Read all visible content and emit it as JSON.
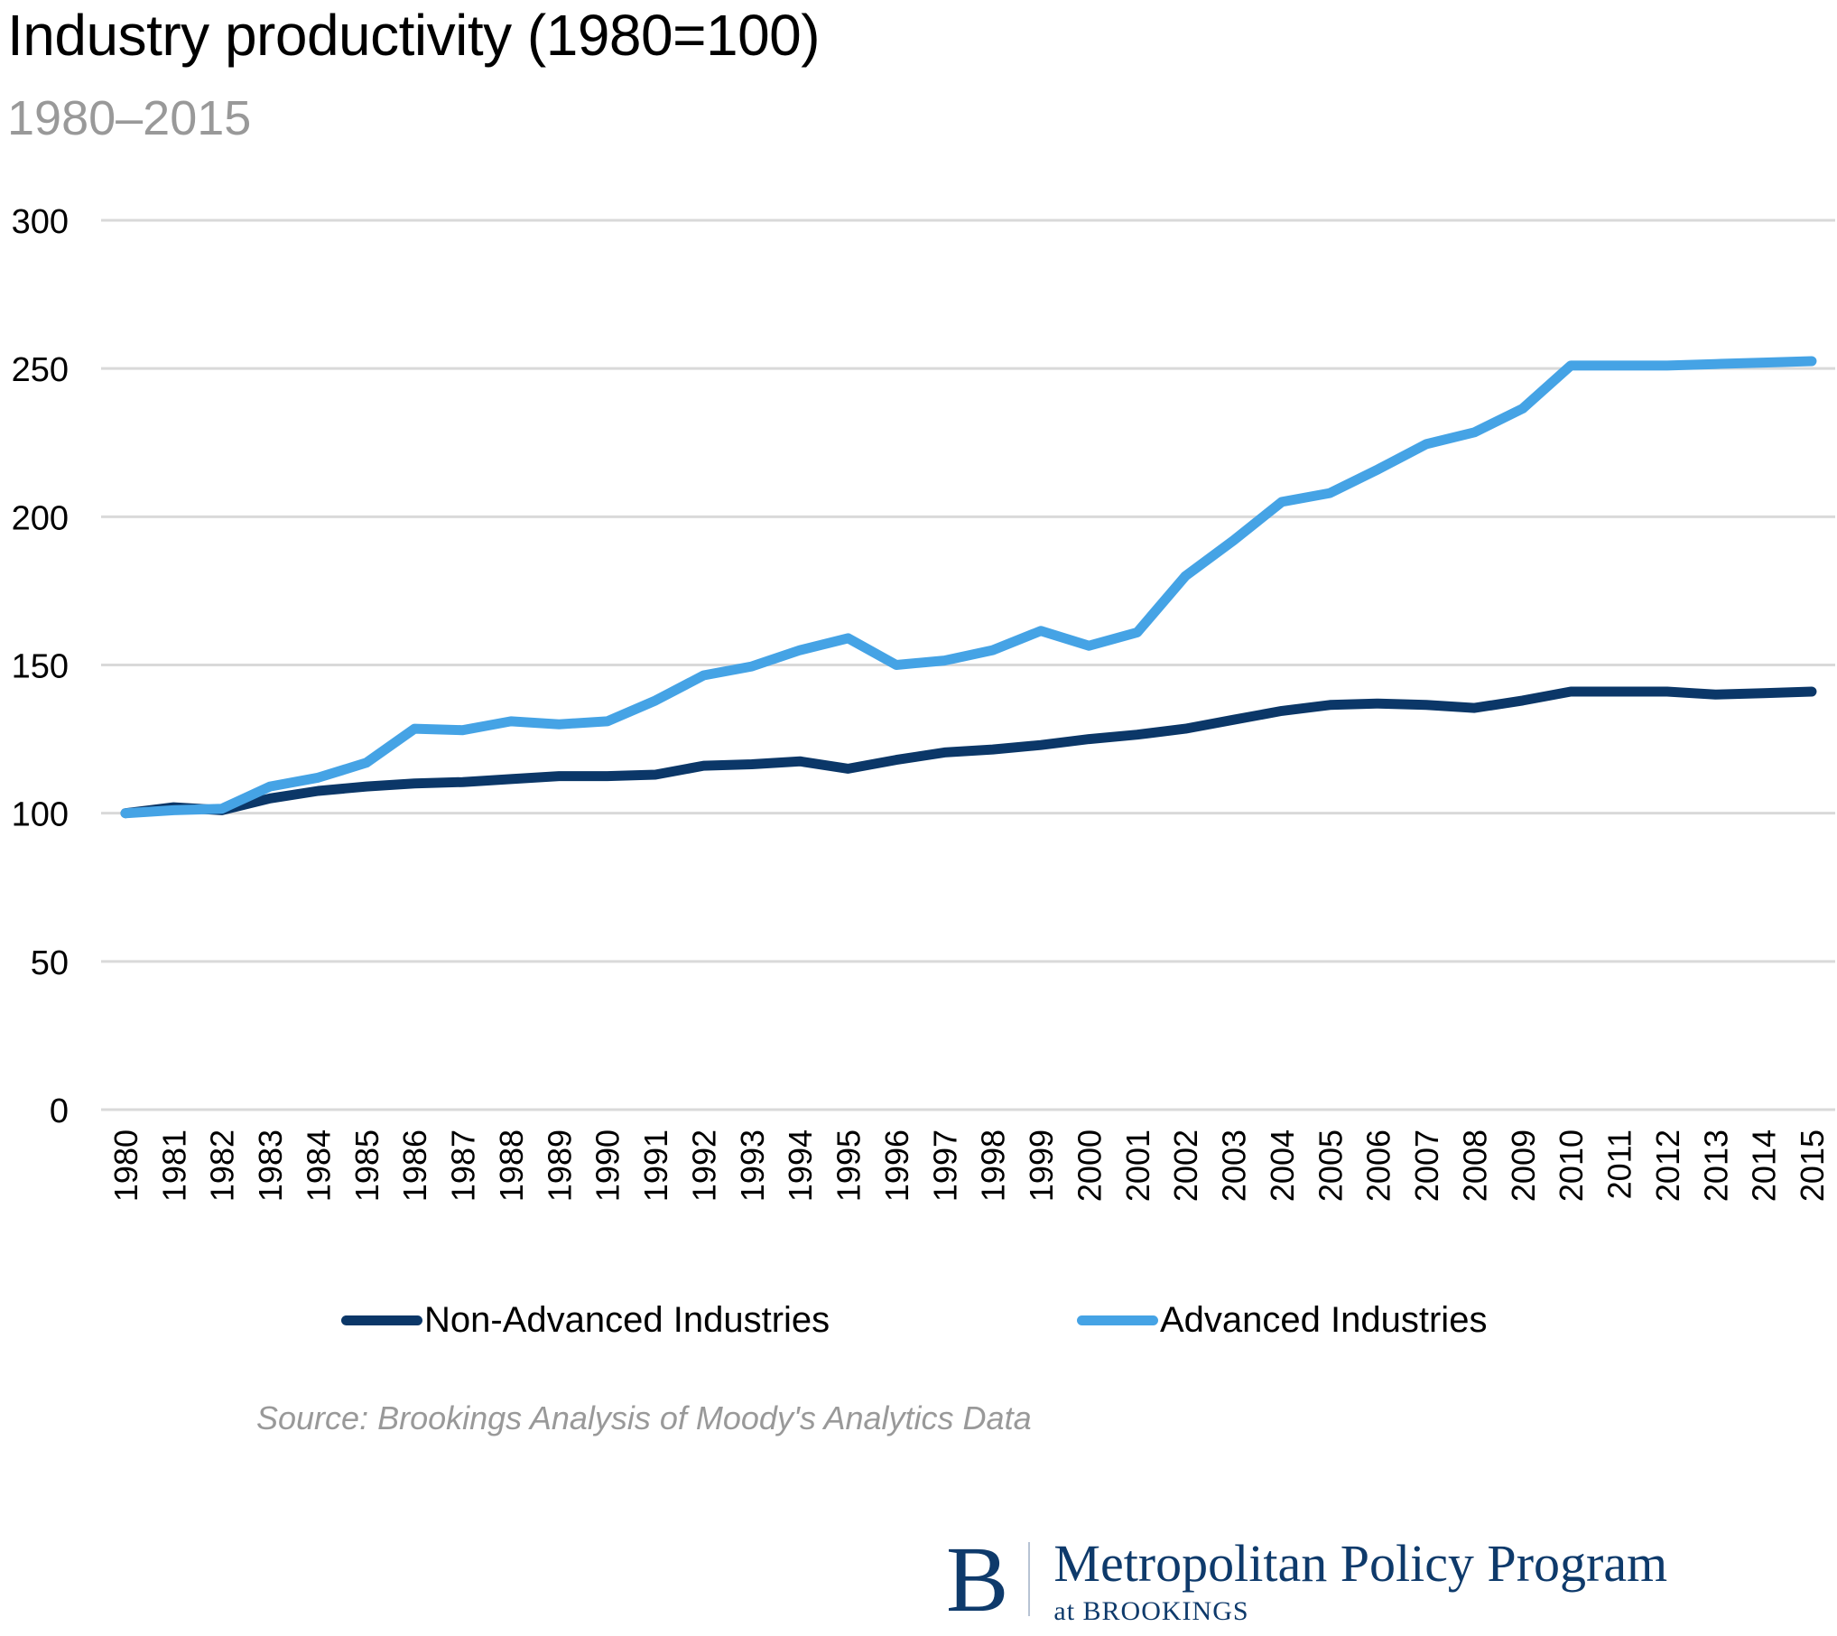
{
  "chart_data": {
    "type": "line",
    "title": "Industry productivity (1980=100)",
    "subtitle": "1980–2015",
    "xlabel": "",
    "ylabel": "",
    "ylim": [
      0,
      300
    ],
    "yticks": [
      0,
      50,
      100,
      150,
      200,
      250,
      300
    ],
    "grid": true,
    "legend_position": "bottom",
    "x": [
      "1980",
      "1981",
      "1982",
      "1983",
      "1984",
      "1985",
      "1986",
      "1987",
      "1988",
      "1989",
      "1990",
      "1991",
      "1992",
      "1993",
      "1994",
      "1995",
      "1996",
      "1997",
      "1998",
      "1999",
      "2000",
      "2001",
      "2002",
      "2003",
      "2004",
      "2005",
      "2006",
      "2007",
      "2008",
      "2009",
      "2010",
      "2011",
      "2012",
      "2013",
      "2014",
      "2015"
    ],
    "series": [
      {
        "name": "Non-Advanced Industries",
        "color": "#0b3768",
        "values": [
          100,
          102,
          101,
          105,
          107.5,
          109,
          110,
          110.5,
          111.5,
          112.5,
          112.5,
          113,
          116,
          116.5,
          117.5,
          115,
          118,
          120.5,
          121.5,
          123,
          125,
          126.5,
          128.5,
          131.5,
          134.5,
          136.5,
          137,
          136.5,
          135.5,
          138,
          141,
          141,
          141,
          140,
          140.5,
          141
        ]
      },
      {
        "name": "Advanced Industries",
        "color": "#45a3e5",
        "values": [
          100,
          101,
          101.5,
          109,
          112,
          117,
          128.5,
          128,
          131,
          130,
          131,
          138,
          146.5,
          149.5,
          155,
          159,
          150,
          151.5,
          155,
          161.5,
          156.5,
          161,
          180,
          192,
          205,
          208,
          216,
          224.5,
          228.5,
          236.5,
          251,
          251,
          251,
          251.5,
          252,
          252.5
        ]
      }
    ],
    "source": "Source: Brookings Analysis of Moody's Analytics Data"
  },
  "branding": {
    "logo_letter": "B",
    "program_name": "Metropolitan Policy Program",
    "affiliation": "at BROOKINGS",
    "brand_color": "#0e3a6b"
  },
  "style": {
    "grid_color": "#d9d9d9",
    "title_color": "#000000",
    "subtitle_color": "#999999"
  }
}
